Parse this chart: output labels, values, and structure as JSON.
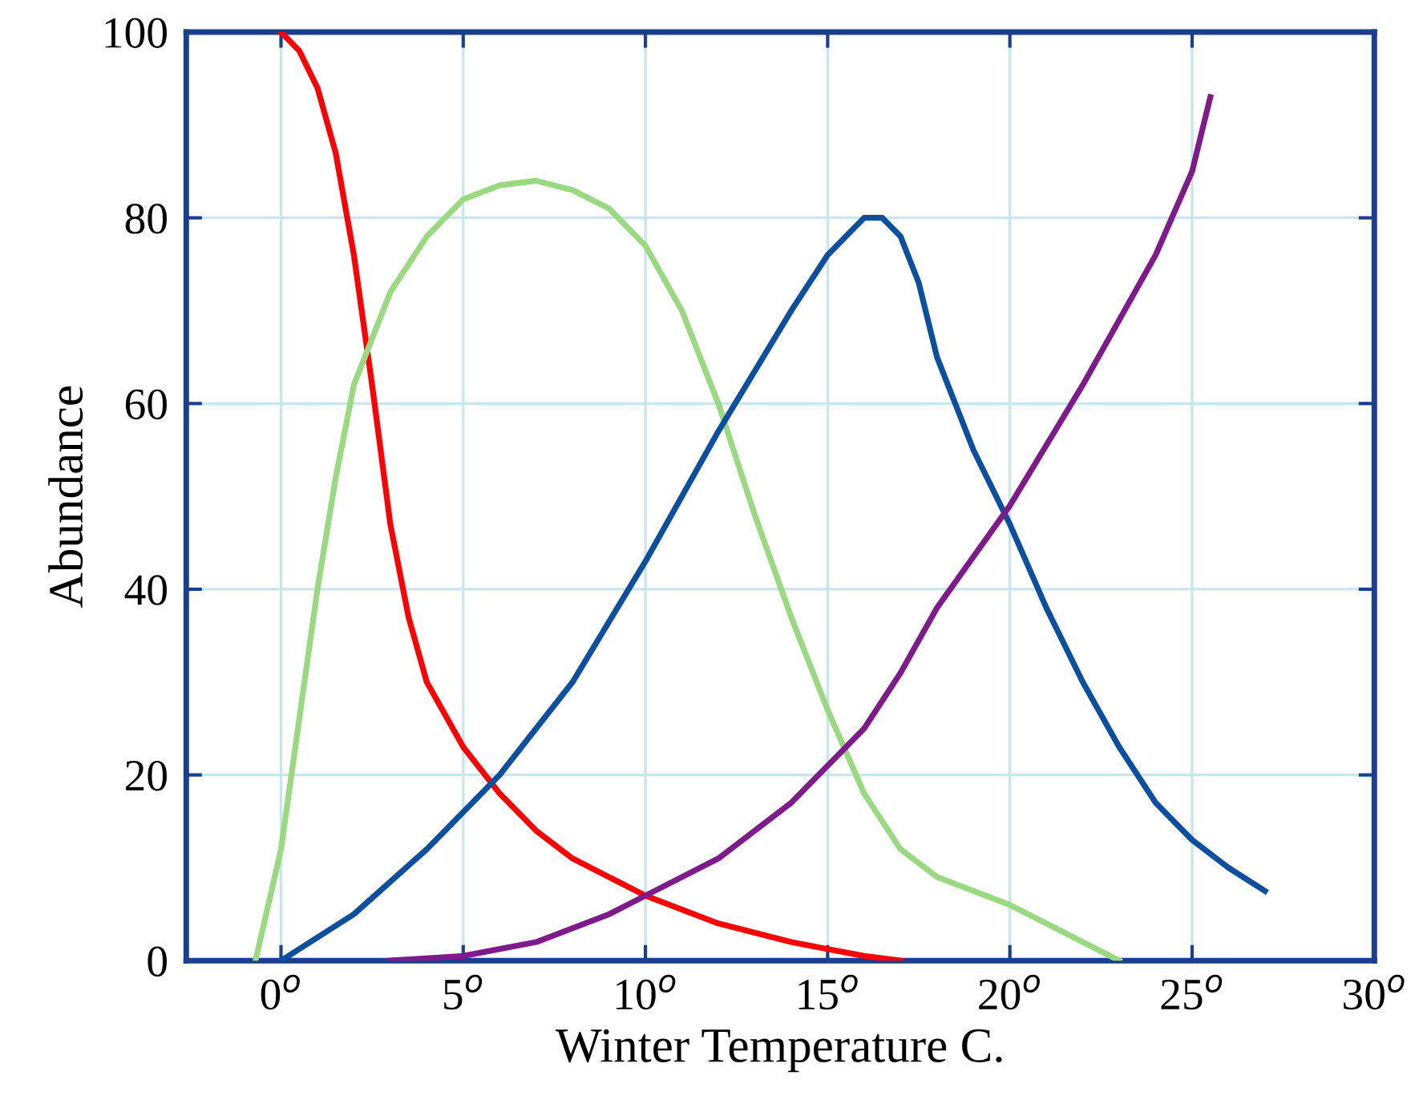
{
  "chart_data": {
    "type": "line",
    "xlabel": "Winter Temperature C.",
    "ylabel": "Abundance",
    "xlim": [
      -2.6,
      30
    ],
    "ylim": [
      0,
      100
    ],
    "xticks": [
      {
        "value": 0,
        "label": "0$^{o}$"
      },
      {
        "value": 5,
        "label": "5$^{o}$"
      },
      {
        "value": 10,
        "label": "10$^{o}$"
      },
      {
        "value": 15,
        "label": "15$^{o}$"
      },
      {
        "value": 20,
        "label": "20$^{o}$"
      },
      {
        "value": 25,
        "label": "25$^{o}$"
      },
      {
        "value": 30,
        "label": "30$^{o}$"
      }
    ],
    "yticks": [
      0,
      20,
      40,
      60,
      80,
      100
    ],
    "grid": true,
    "marker": "none",
    "line_style": "solid",
    "series": [
      {
        "color": "#ff0000",
        "x": [
          0,
          0.5,
          1,
          1.5,
          2,
          2.5,
          3,
          3.5,
          4,
          5,
          6,
          7,
          8,
          10,
          12,
          14,
          16,
          17
        ],
        "values": [
          100,
          98,
          94,
          87,
          76,
          62,
          47,
          37,
          30,
          23,
          18,
          14,
          11,
          7,
          4,
          2,
          0.5,
          0
        ]
      },
      {
        "color": "#99d97f",
        "x": [
          -0.7,
          0,
          1,
          1.5,
          2,
          3,
          4,
          5,
          6,
          7,
          8,
          9,
          10,
          11,
          12,
          13,
          14,
          15,
          16,
          17,
          18,
          20,
          22,
          23
        ],
        "values": [
          0,
          12,
          40,
          52,
          62,
          72,
          78,
          82,
          83.5,
          84,
          83,
          81,
          77,
          70,
          60,
          48,
          37,
          27,
          18,
          12,
          9,
          6,
          2,
          0
        ]
      },
      {
        "color": "#0a4fa0",
        "x": [
          0,
          2,
          4,
          6,
          8,
          10,
          12,
          14,
          15,
          16,
          16.5,
          17,
          17.5,
          18,
          19,
          20,
          21,
          22,
          23,
          24,
          25,
          26,
          27
        ],
        "values": [
          0,
          5,
          12,
          20,
          30,
          43,
          57,
          70,
          76,
          80,
          80,
          78,
          73,
          65,
          55,
          47,
          38,
          30,
          23,
          17,
          13,
          10,
          7.5
        ]
      },
      {
        "color": "#7f1a8c",
        "x": [
          3,
          5,
          7,
          9,
          10,
          12,
          14,
          15,
          16,
          17,
          18,
          20,
          22,
          24,
          25,
          25.5
        ],
        "values": [
          0,
          0.5,
          2,
          5,
          7,
          11,
          17,
          21,
          25,
          31,
          38,
          49,
          62,
          76,
          85,
          93
        ]
      }
    ]
  }
}
